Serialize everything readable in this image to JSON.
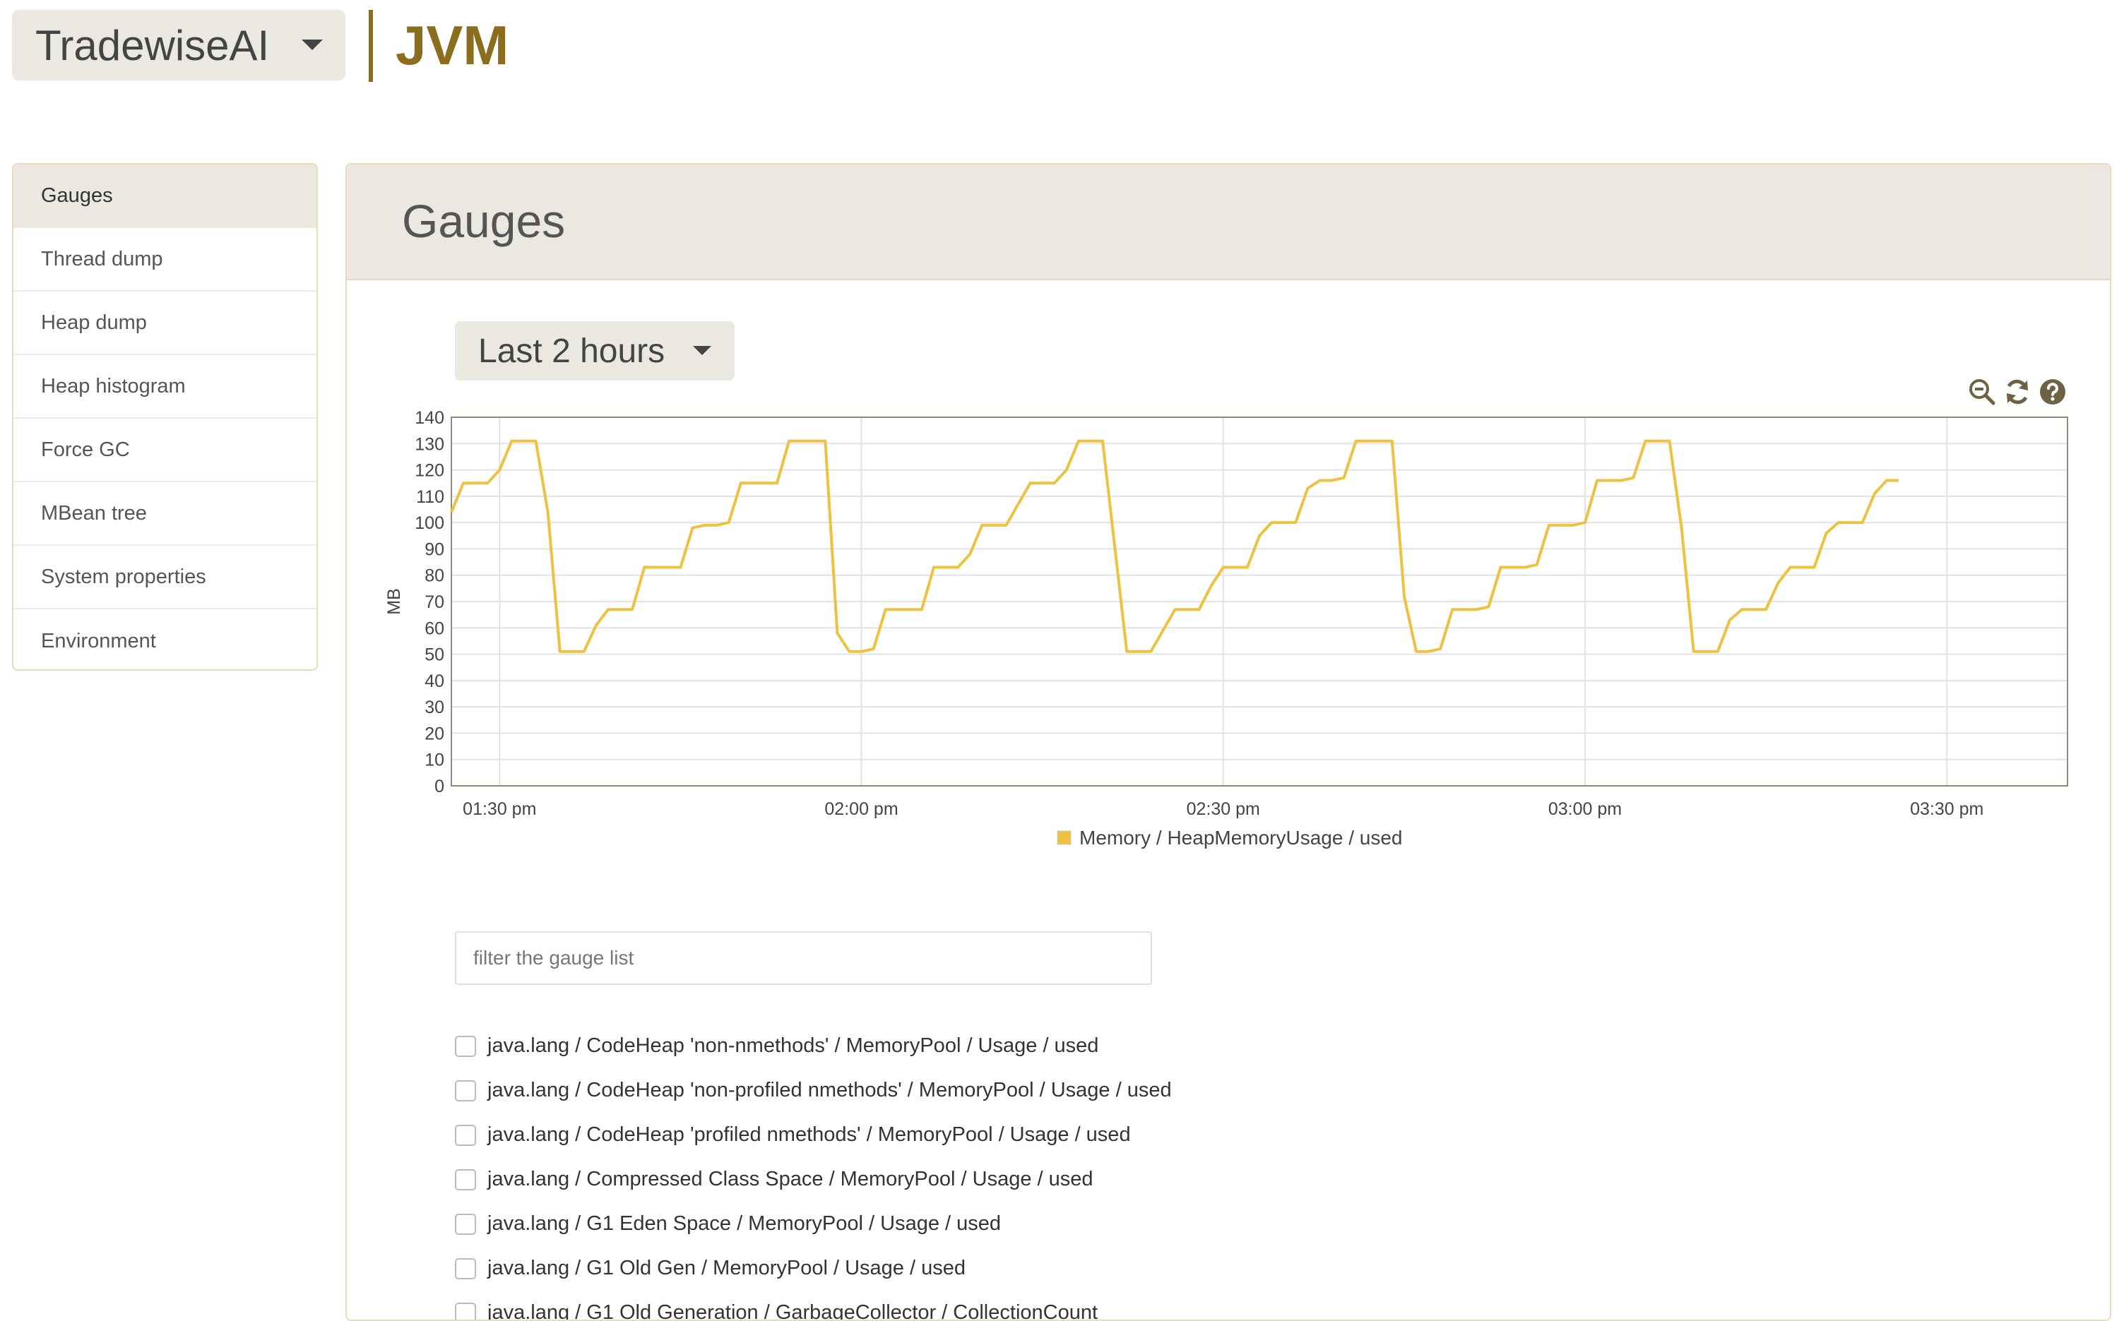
{
  "header": {
    "app_name": "TradewiseAI",
    "section": "JVM"
  },
  "sidebar": {
    "items": [
      {
        "label": "Gauges"
      },
      {
        "label": "Thread dump"
      },
      {
        "label": "Heap dump"
      },
      {
        "label": "Heap histogram"
      },
      {
        "label": "Force GC"
      },
      {
        "label": "MBean tree"
      },
      {
        "label": "System properties"
      },
      {
        "label": "Environment"
      }
    ]
  },
  "main": {
    "title": "Gauges",
    "time_range": "Last 2 hours",
    "filter": {
      "placeholder": "filter the gauge list",
      "value": ""
    },
    "gauges": [
      "java.lang / CodeHeap 'non-nmethods' / MemoryPool / Usage / used",
      "java.lang / CodeHeap 'non-profiled nmethods' / MemoryPool / Usage / used",
      "java.lang / CodeHeap 'profiled nmethods' / MemoryPool / Usage / used",
      "java.lang / Compressed Class Space / MemoryPool / Usage / used",
      "java.lang / G1 Eden Space / MemoryPool / Usage / used",
      "java.lang / G1 Old Gen / MemoryPool / Usage / used",
      "java.lang / G1 Old Generation / GarbageCollector / CollectionCount"
    ]
  },
  "icons": {
    "zoom_out": "zoom-out-icon",
    "refresh": "refresh-icon",
    "help": "help-icon"
  },
  "colors": {
    "accent": "#8a6d1d",
    "series": "#edc240",
    "panel_bg": "#ebe8e1"
  },
  "chart_data": {
    "type": "line",
    "ylabel": "MB",
    "ylim": [
      0,
      140
    ],
    "y_ticks": [
      0,
      10,
      20,
      30,
      40,
      50,
      60,
      70,
      80,
      90,
      100,
      110,
      120,
      130,
      140
    ],
    "xlim": [
      "01:26",
      "03:40"
    ],
    "x_ticks": [
      "01:30 pm",
      "02:00 pm",
      "02:30 pm",
      "03:00 pm",
      "03:30 pm"
    ],
    "grid": true,
    "legend": "bottom-center",
    "series": [
      {
        "name": "Memory / HeapMemoryUsage / used",
        "x": [
          "01:26",
          "01:27",
          "01:28",
          "01:29",
          "01:30",
          "01:31",
          "01:32",
          "01:33",
          "01:34",
          "01:35",
          "01:36",
          "01:37",
          "01:38",
          "01:39",
          "01:40",
          "01:41",
          "01:42",
          "01:43",
          "01:44",
          "01:45",
          "01:46",
          "01:47",
          "01:48",
          "01:49",
          "01:50",
          "01:51",
          "01:52",
          "01:53",
          "01:54",
          "01:55",
          "01:56",
          "01:57",
          "01:58",
          "01:59",
          "02:00",
          "02:01",
          "02:02",
          "02:03",
          "02:04",
          "02:05",
          "02:06",
          "02:07",
          "02:08",
          "02:09",
          "02:10",
          "02:11",
          "02:12",
          "02:13",
          "02:14",
          "02:15",
          "02:16",
          "02:17",
          "02:18",
          "02:19",
          "02:20",
          "02:21",
          "02:22",
          "02:23",
          "02:24",
          "02:25",
          "02:26",
          "02:27",
          "02:28",
          "02:29",
          "02:30",
          "02:31",
          "02:32",
          "02:33",
          "02:34",
          "02:35",
          "02:36",
          "02:37",
          "02:38",
          "02:39",
          "02:40",
          "02:41",
          "02:42",
          "02:43",
          "02:44",
          "02:45",
          "02:46",
          "02:47",
          "02:48",
          "02:49",
          "02:50",
          "02:51",
          "02:52",
          "02:53",
          "02:54",
          "02:55",
          "02:56",
          "02:57",
          "02:58",
          "02:59",
          "03:00",
          "03:01",
          "03:02",
          "03:03",
          "03:04",
          "03:05",
          "03:06",
          "03:07",
          "03:08",
          "03:09",
          "03:10",
          "03:11",
          "03:12",
          "03:13",
          "03:14",
          "03:15",
          "03:16",
          "03:17",
          "03:18",
          "03:19",
          "03:20",
          "03:21",
          "03:22",
          "03:23",
          "03:24",
          "03:25",
          "03:26"
        ],
        "values": [
          104,
          115,
          115,
          115,
          120,
          131,
          131,
          131,
          104,
          51,
          51,
          51,
          61,
          67,
          67,
          67,
          83,
          83,
          83,
          83,
          98,
          99,
          99,
          100,
          115,
          115,
          115,
          115,
          131,
          131,
          131,
          131,
          58,
          51,
          51,
          52,
          67,
          67,
          67,
          67,
          83,
          83,
          83,
          88,
          99,
          99,
          99,
          107,
          115,
          115,
          115,
          120,
          131,
          131,
          131,
          91,
          51,
          51,
          51,
          59,
          67,
          67,
          67,
          76,
          83,
          83,
          83,
          95,
          100,
          100,
          100,
          113,
          116,
          116,
          117,
          131,
          131,
          131,
          131,
          72,
          51,
          51,
          52,
          67,
          67,
          67,
          68,
          83,
          83,
          83,
          84,
          99,
          99,
          99,
          100,
          116,
          116,
          116,
          117,
          131,
          131,
          131,
          98,
          51,
          51,
          51,
          63,
          67,
          67,
          67,
          77,
          83,
          83,
          83,
          96,
          100,
          100,
          100,
          111,
          116,
          116
        ]
      }
    ]
  }
}
